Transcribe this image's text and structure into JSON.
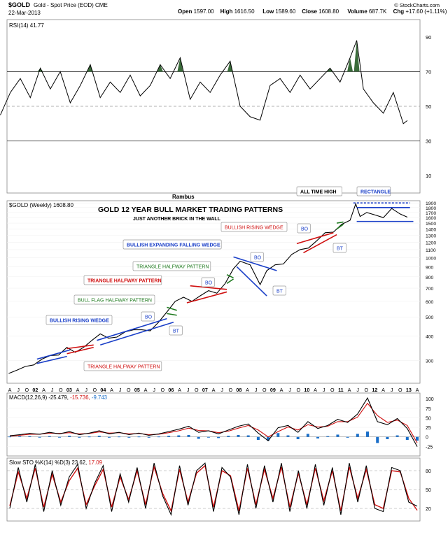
{
  "header": {
    "symbol": "$GOLD",
    "name": "Gold - Spot Price (EOD)",
    "exchange": "CME",
    "date": "22-Mar-2013",
    "ohlc": [
      {
        "label": "Open",
        "value": "1597.00"
      },
      {
        "label": "High",
        "value": "1616.50"
      },
      {
        "label": "Low",
        "value": "1589.60"
      },
      {
        "label": "Close",
        "value": "1608.80"
      },
      {
        "label": "Volume",
        "value": "687.7K"
      },
      {
        "label": "Chg",
        "value": "+17.60 (+1.11%)"
      }
    ],
    "copyright": "© StockCharts.com"
  },
  "chart_data": [
    {
      "type": "line",
      "panel": "rsi",
      "legend": "RSI(14) 41.77",
      "ylim": [
        0,
        100
      ],
      "yticks": [
        10,
        30,
        50,
        70,
        90
      ],
      "reference_lines": [
        30,
        50,
        70
      ],
      "overbought_fill_color": "#3a6b3a",
      "line_color": "#000000",
      "x": [
        2001.0,
        2001.3,
        2001.6,
        2001.9,
        2002.2,
        2002.5,
        2002.8,
        2003.1,
        2003.4,
        2003.7,
        2004.0,
        2004.3,
        2004.6,
        2004.9,
        2005.2,
        2005.5,
        2005.8,
        2006.1,
        2006.4,
        2006.7,
        2007.0,
        2007.3,
        2007.6,
        2007.9,
        2008.2,
        2008.5,
        2008.8,
        2009.1,
        2009.4,
        2009.7,
        2010.0,
        2010.3,
        2010.6,
        2010.9,
        2011.2,
        2011.5,
        2011.7,
        2011.9,
        2012.2,
        2012.5,
        2012.8,
        2013.1,
        2013.22
      ],
      "values": [
        45,
        58,
        66,
        55,
        72,
        60,
        70,
        52,
        62,
        74,
        55,
        64,
        58,
        68,
        56,
        62,
        74,
        66,
        78,
        54,
        64,
        58,
        68,
        76,
        50,
        44,
        42,
        62,
        66,
        58,
        68,
        60,
        66,
        72,
        64,
        78,
        88,
        60,
        52,
        46,
        58,
        40,
        41.77
      ]
    },
    {
      "type": "line",
      "panel": "price",
      "legend": "$GOLD (Weekly) 1608.80",
      "scale": "log",
      "ylim": [
        230,
        1950
      ],
      "yticks": [
        300,
        400,
        500,
        600,
        700,
        800,
        900,
        1000,
        1100,
        1200,
        1300,
        1400,
        1500,
        1600,
        1700,
        1800,
        1900
      ],
      "x_tick_labels": [
        "A",
        "J",
        "O",
        "02",
        "A",
        "J",
        "O",
        "03",
        "A",
        "J",
        "O",
        "04",
        "A",
        "J",
        "O",
        "05",
        "A",
        "J",
        "O",
        "06",
        "A",
        "J",
        "O",
        "07",
        "A",
        "J",
        "O",
        "08",
        "A",
        "J",
        "O",
        "09",
        "A",
        "J",
        "O",
        "10",
        "A",
        "J",
        "O",
        "11",
        "A",
        "J",
        "O",
        "12",
        "A",
        "J",
        "O",
        "13",
        "A"
      ],
      "xlim": [
        2001.2,
        2013.6
      ],
      "x": [
        2001.25,
        2001.5,
        2001.75,
        2002.0,
        2002.25,
        2002.5,
        2002.75,
        2003.0,
        2003.25,
        2003.5,
        2003.75,
        2004.0,
        2004.25,
        2004.5,
        2004.75,
        2005.0,
        2005.25,
        2005.5,
        2005.75,
        2006.0,
        2006.25,
        2006.5,
        2006.75,
        2007.0,
        2007.25,
        2007.5,
        2007.75,
        2008.0,
        2008.2,
        2008.5,
        2008.8,
        2009.0,
        2009.25,
        2009.5,
        2009.75,
        2010.0,
        2010.25,
        2010.5,
        2010.75,
        2011.0,
        2011.25,
        2011.5,
        2011.67,
        2011.8,
        2012.0,
        2012.25,
        2012.5,
        2012.75,
        2013.0,
        2013.22
      ],
      "values": [
        258,
        268,
        280,
        285,
        305,
        318,
        320,
        350,
        330,
        350,
        380,
        410,
        390,
        395,
        420,
        430,
        430,
        425,
        470,
        530,
        600,
        630,
        600,
        640,
        680,
        660,
        740,
        880,
        960,
        920,
        730,
        860,
        920,
        930,
        1040,
        1100,
        1120,
        1220,
        1340,
        1350,
        1480,
        1550,
        1880,
        1620,
        1700,
        1650,
        1600,
        1780,
        1670,
        1608.8
      ]
    },
    {
      "type": "line",
      "panel": "macd",
      "legend": [
        {
          "text": "MACD(12,26,9) -25.479,",
          "color": "#000000"
        },
        {
          "text": "-15.736,",
          "color": "#d01010"
        },
        {
          "text": "-9.743",
          "color": "#1a6ec8"
        }
      ],
      "ylim": [
        -50,
        115
      ],
      "yticks": [
        -25,
        0,
        25,
        50,
        75,
        100
      ],
      "histogram_color": "#1a6ec8",
      "series": [
        {
          "role": "macd",
          "color": "#000000",
          "values": [
            3,
            6,
            9,
            7,
            12,
            8,
            14,
            6,
            10,
            16,
            8,
            12,
            6,
            10,
            4,
            8,
            14,
            20,
            28,
            12,
            16,
            8,
            18,
            28,
            34,
            10,
            -10,
            24,
            30,
            12,
            40,
            22,
            30,
            46,
            38,
            60,
            102,
            40,
            32,
            48,
            22,
            -25.479
          ]
        },
        {
          "role": "signal",
          "color": "#d01010",
          "values": [
            2,
            4,
            7,
            7,
            10,
            9,
            11,
            8,
            9,
            13,
            10,
            11,
            8,
            9,
            6,
            7,
            11,
            16,
            23,
            17,
            16,
            11,
            15,
            23,
            30,
            18,
            0,
            14,
            26,
            18,
            32,
            26,
            28,
            40,
            40,
            52,
            88,
            56,
            38,
            44,
            30,
            -15.736
          ]
        },
        {
          "role": "histogram",
          "color": "#1a6ec8",
          "values": [
            1,
            2,
            2,
            0,
            2,
            -1,
            3,
            -2,
            1,
            3,
            -2,
            1,
            -2,
            1,
            -2,
            1,
            3,
            4,
            5,
            -5,
            0,
            -3,
            3,
            5,
            4,
            -8,
            -10,
            10,
            4,
            -6,
            8,
            -4,
            2,
            6,
            -2,
            8,
            14,
            -16,
            -6,
            4,
            -8,
            -9.743
          ]
        }
      ]
    },
    {
      "type": "line",
      "panel": "stochastic",
      "legend": [
        {
          "text": "Slow STO %K(14) %D(3) 23.62,",
          "color": "#000000"
        },
        {
          "text": "17.09",
          "color": "#d01010"
        }
      ],
      "ylim": [
        0,
        100
      ],
      "yticks": [
        20,
        50,
        80
      ],
      "reference_lines": [
        20,
        50,
        80
      ],
      "series": [
        {
          "role": "%K",
          "color": "#000000",
          "values": [
            20,
            85,
            30,
            90,
            15,
            80,
            25,
            70,
            90,
            20,
            60,
            88,
            15,
            75,
            30,
            85,
            20,
            92,
            40,
            10,
            88,
            25,
            80,
            92,
            15,
            85,
            70,
            10,
            90,
            20,
            88,
            30,
            92,
            15,
            80,
            20,
            90,
            25,
            85,
            10,
            92,
            30,
            88,
            20,
            15,
            85,
            80,
            30,
            23.62
          ]
        },
        {
          "role": "%D",
          "color": "#d01010",
          "values": [
            24,
            78,
            36,
            84,
            22,
            74,
            30,
            64,
            84,
            26,
            56,
            82,
            22,
            70,
            34,
            80,
            26,
            86,
            44,
            16,
            82,
            30,
            76,
            88,
            22,
            80,
            72,
            16,
            84,
            26,
            82,
            36,
            86,
            22,
            76,
            26,
            84,
            32,
            80,
            16,
            86,
            36,
            82,
            26,
            20,
            80,
            78,
            36,
            17.09
          ]
        }
      ]
    }
  ],
  "annotations": {
    "author": "Rambus",
    "title": "GOLD 12 YEAR BULL MARKET TRADING PATTERNS",
    "subtitle": "JUST ANOTHER BRICK IN THE WALL",
    "labels": [
      {
        "id": "all-time-high",
        "text": "ALL TIME HIGH",
        "color": "#000000"
      },
      {
        "id": "rectangle",
        "text": "RECTANGLE",
        "color": "#1a3fc8"
      },
      {
        "id": "bullish-rising-wedge-top",
        "text": "BULLISH RISING WEDGE",
        "color": "#d01010"
      },
      {
        "id": "bo-1",
        "text": "BO",
        "color": "#1a3fc8"
      },
      {
        "id": "bt-1",
        "text": "BT",
        "color": "#1a3fc8"
      },
      {
        "id": "bullish-expanding-falling-wedge",
        "text": "BULLISH EXPANDING FALLING WEDGE",
        "color": "#1a3fc8"
      },
      {
        "id": "bo-2",
        "text": "BO",
        "color": "#1a3fc8"
      },
      {
        "id": "bt-2",
        "text": "BT",
        "color": "#1a3fc8"
      },
      {
        "id": "triangle-halfway-green",
        "text": "TRIANGLE HALFWAY PATTERN",
        "color": "#1f7a1f"
      },
      {
        "id": "triangle-halfway-red",
        "text": "TRIANGLE HALFWAY PATTERN",
        "color": "#d01010"
      },
      {
        "id": "bo-3",
        "text": "BO",
        "color": "#1a3fc8"
      },
      {
        "id": "bull-flag-halfway",
        "text": "BULL FLAG HALFWAY PATTERN",
        "color": "#1f7a1f"
      },
      {
        "id": "bullish-rising-wedge-low",
        "text": "BULLISH RISING WEDGE",
        "color": "#1a3fc8"
      },
      {
        "id": "bo-4",
        "text": "BO",
        "color": "#1a3fc8"
      },
      {
        "id": "bt-3",
        "text": "BT",
        "color": "#1a3fc8"
      },
      {
        "id": "triangle-halfway-bottom",
        "text": "TRIANGLE HALFWAY PATTERN",
        "color": "#d01010"
      }
    ]
  }
}
